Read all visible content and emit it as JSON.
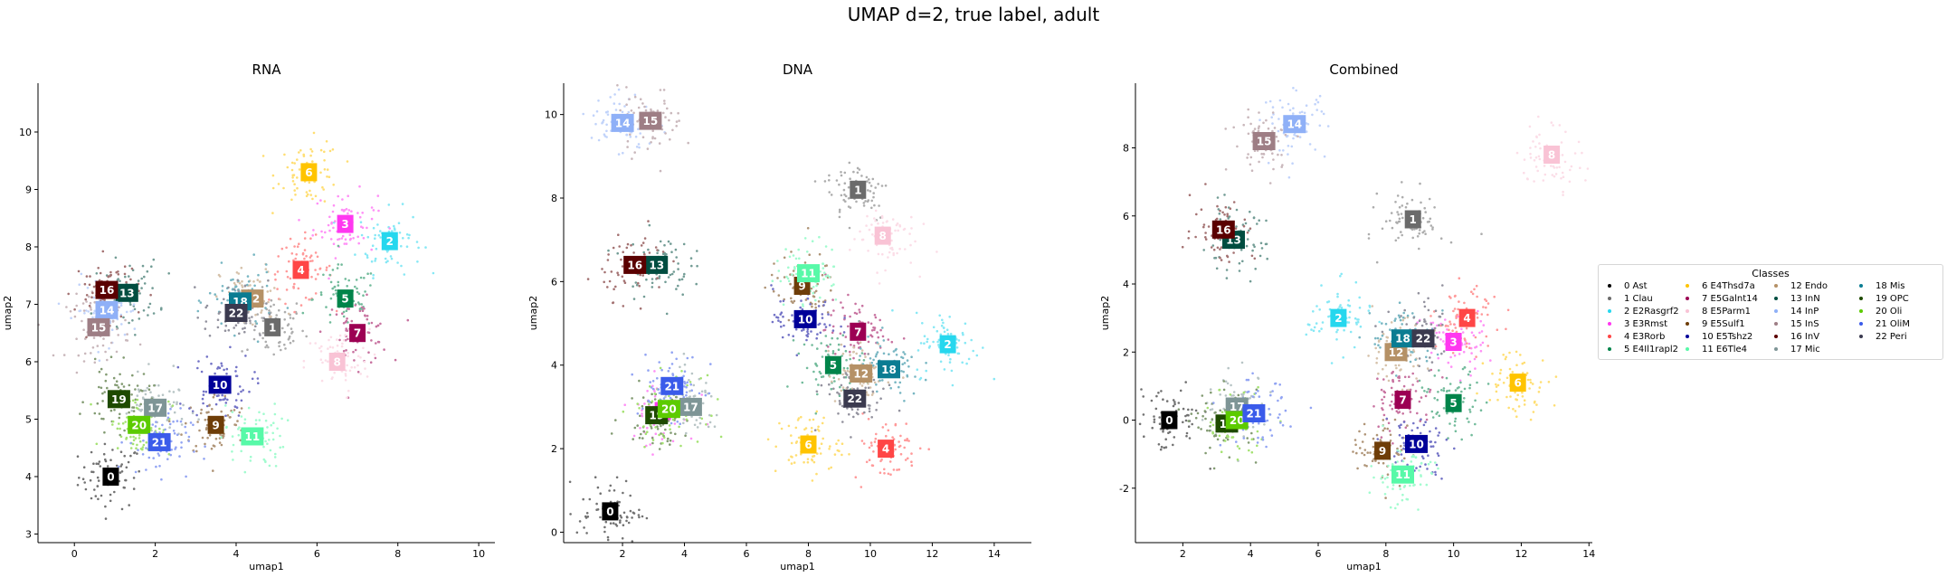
{
  "suptitle": "UMAP d=2, true label, adult",
  "legend": {
    "title": "Classes",
    "placement": "right, outside plots",
    "items": [
      "0 Ast",
      "1 Clau",
      "2 E2Rasgrf2",
      "3 E3Rmst",
      "4 E3Rorb",
      "5 E4Il1rapl2",
      "6 E4Thsd7a",
      "7 E5Galnt14",
      "8 E5Parm1",
      "9 E5Sulf1",
      "10 E5Tshz2",
      "11 E6Tle4",
      "12 Endo",
      "13 InN",
      "14 InP",
      "15 InS",
      "16 InV",
      "17 Mic",
      "18 Mis",
      "19 OPC",
      "20 Oli",
      "21 OliM",
      "22 Peri"
    ]
  },
  "colors": {
    "0": "#000000",
    "1": "#6b6b6b",
    "2": "#26d7ee",
    "3": "#ff37f0",
    "4": "#ff4646",
    "5": "#00844a",
    "6": "#ffc400",
    "7": "#9c0053",
    "8": "#f9c3d5",
    "9": "#6e3d08",
    "10": "#000099",
    "11": "#57f9a8",
    "12": "#b59166",
    "13": "#004d40",
    "14": "#8fb0f7",
    "15": "#9e7e85",
    "16": "#5a0000",
    "17": "#7e9596",
    "18": "#0a7c92",
    "19": "#1e4a00",
    "20": "#5ccb00",
    "21": "#3a5bea",
    "22": "#3b3a4f"
  },
  "chart_data": [
    {
      "type": "scatter",
      "title": "RNA",
      "xlabel": "umap1",
      "ylabel": "umap2",
      "xlim": [
        -0.9,
        10.4
      ],
      "ylim": [
        2.85,
        10.85
      ],
      "xticks": [
        "0",
        "2",
        "4",
        "6",
        "8",
        "10"
      ],
      "yticks": [
        "3",
        "4",
        "5",
        "6",
        "7",
        "8",
        "9",
        "10"
      ],
      "centroids": [
        {
          "label": "0",
          "x": 0.9,
          "y": 4.0
        },
        {
          "label": "1",
          "x": 4.9,
          "y": 6.6
        },
        {
          "label": "2",
          "x": 7.8,
          "y": 8.1
        },
        {
          "label": "3",
          "x": 6.7,
          "y": 8.4
        },
        {
          "label": "4",
          "x": 5.6,
          "y": 7.6
        },
        {
          "label": "5",
          "x": 6.7,
          "y": 7.1
        },
        {
          "label": "6",
          "x": 5.8,
          "y": 9.3
        },
        {
          "label": "7",
          "x": 7.0,
          "y": 6.5
        },
        {
          "label": "8",
          "x": 6.5,
          "y": 6.0
        },
        {
          "label": "9",
          "x": 3.5,
          "y": 4.9
        },
        {
          "label": "10",
          "x": 3.6,
          "y": 5.6
        },
        {
          "label": "11",
          "x": 4.4,
          "y": 4.7
        },
        {
          "label": "12",
          "x": 4.4,
          "y": 7.1
        },
        {
          "label": "13",
          "x": 1.3,
          "y": 7.2
        },
        {
          "label": "14",
          "x": 0.8,
          "y": 6.9
        },
        {
          "label": "15",
          "x": 0.6,
          "y": 6.6
        },
        {
          "label": "16",
          "x": 0.8,
          "y": 7.25
        },
        {
          "label": "17",
          "x": 2.0,
          "y": 5.2
        },
        {
          "label": "18",
          "x": 4.1,
          "y": 7.05
        },
        {
          "label": "19",
          "x": 1.1,
          "y": 5.35
        },
        {
          "label": "20",
          "x": 1.6,
          "y": 4.9
        },
        {
          "label": "21",
          "x": 2.1,
          "y": 4.6
        },
        {
          "label": "22",
          "x": 4.0,
          "y": 6.85
        }
      ]
    },
    {
      "type": "scatter",
      "title": "DNA",
      "xlabel": "umap1",
      "ylabel": "umap2",
      "xlim": [
        0.1,
        15.2
      ],
      "ylim": [
        -0.25,
        10.75
      ],
      "xticks": [
        "2",
        "4",
        "6",
        "8",
        "10",
        "12",
        "14"
      ],
      "yticks": [
        "0",
        "2",
        "4",
        "6",
        "8",
        "10"
      ],
      "centroids": [
        {
          "label": "0",
          "x": 1.6,
          "y": 0.5
        },
        {
          "label": "1",
          "x": 9.6,
          "y": 8.2
        },
        {
          "label": "2",
          "x": 12.5,
          "y": 4.5
        },
        {
          "label": "3",
          "x": 3.3,
          "y": 2.9
        },
        {
          "label": "4",
          "x": 10.5,
          "y": 2.0
        },
        {
          "label": "5",
          "x": 8.8,
          "y": 4.0
        },
        {
          "label": "6",
          "x": 8.0,
          "y": 2.1
        },
        {
          "label": "7",
          "x": 9.6,
          "y": 4.8
        },
        {
          "label": "8",
          "x": 10.4,
          "y": 7.1
        },
        {
          "label": "9",
          "x": 7.8,
          "y": 5.9
        },
        {
          "label": "10",
          "x": 7.9,
          "y": 5.1
        },
        {
          "label": "11",
          "x": 8.0,
          "y": 6.2
        },
        {
          "label": "12",
          "x": 9.7,
          "y": 3.8
        },
        {
          "label": "13",
          "x": 3.1,
          "y": 6.4
        },
        {
          "label": "14",
          "x": 2.0,
          "y": 9.8
        },
        {
          "label": "15",
          "x": 2.9,
          "y": 9.85
        },
        {
          "label": "16",
          "x": 2.4,
          "y": 6.4
        },
        {
          "label": "17",
          "x": 4.2,
          "y": 3.0
        },
        {
          "label": "18",
          "x": 10.6,
          "y": 3.9
        },
        {
          "label": "19",
          "x": 3.1,
          "y": 2.8
        },
        {
          "label": "20",
          "x": 3.5,
          "y": 2.95
        },
        {
          "label": "21",
          "x": 3.6,
          "y": 3.5
        },
        {
          "label": "22",
          "x": 9.5,
          "y": 3.2
        }
      ]
    },
    {
      "type": "scatter",
      "title": "Combined",
      "xlabel": "umap1",
      "ylabel": "umap2",
      "xlim": [
        0.6,
        14.1
      ],
      "ylim": [
        -3.6,
        9.9
      ],
      "xticks": [
        "2",
        "4",
        "6",
        "8",
        "10",
        "12",
        "14"
      ],
      "yticks": [
        "-2",
        "0",
        "2",
        "4",
        "6",
        "8"
      ],
      "centroids": [
        {
          "label": "0",
          "x": 1.6,
          "y": 0.0
        },
        {
          "label": "1",
          "x": 8.8,
          "y": 5.9
        },
        {
          "label": "2",
          "x": 6.6,
          "y": 3.0
        },
        {
          "label": "3",
          "x": 10.0,
          "y": 2.3
        },
        {
          "label": "4",
          "x": 10.4,
          "y": 3.0
        },
        {
          "label": "5",
          "x": 10.0,
          "y": 0.5
        },
        {
          "label": "6",
          "x": 11.9,
          "y": 1.1
        },
        {
          "label": "7",
          "x": 8.5,
          "y": 0.6
        },
        {
          "label": "8",
          "x": 12.9,
          "y": 7.8
        },
        {
          "label": "9",
          "x": 7.9,
          "y": -0.9
        },
        {
          "label": "10",
          "x": 8.9,
          "y": -0.7
        },
        {
          "label": "11",
          "x": 8.5,
          "y": -1.6
        },
        {
          "label": "12",
          "x": 8.3,
          "y": 2.0
        },
        {
          "label": "13",
          "x": 3.5,
          "y": 5.3
        },
        {
          "label": "14",
          "x": 5.3,
          "y": 8.7
        },
        {
          "label": "15",
          "x": 4.4,
          "y": 8.2
        },
        {
          "label": "16",
          "x": 3.2,
          "y": 5.6
        },
        {
          "label": "17",
          "x": 3.6,
          "y": 0.4
        },
        {
          "label": "18",
          "x": 8.5,
          "y": 2.4
        },
        {
          "label": "19",
          "x": 3.3,
          "y": -0.1
        },
        {
          "label": "20",
          "x": 3.6,
          "y": 0.0
        },
        {
          "label": "21",
          "x": 4.1,
          "y": 0.2
        },
        {
          "label": "22",
          "x": 9.1,
          "y": 2.4
        }
      ]
    }
  ]
}
